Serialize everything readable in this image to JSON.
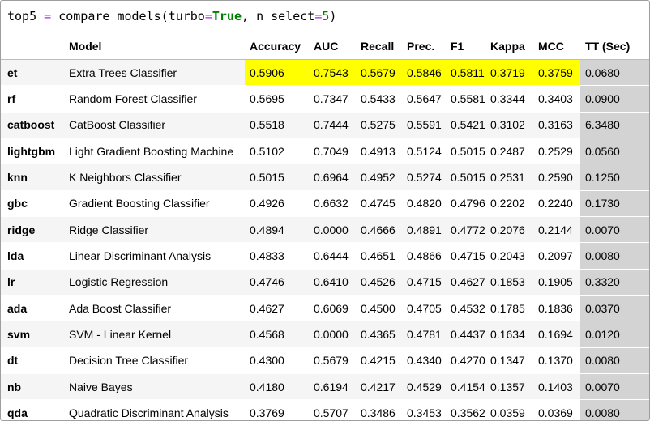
{
  "code": {
    "func_call": "top5",
    "op_assign": "=",
    "func_name": "compare_models(",
    "arg1_name": "turbo",
    "op_eq1": "=",
    "arg1_value": "True",
    "sep": ", ",
    "arg2_name": "n_select",
    "op_eq2": "=",
    "arg2_value": "5",
    "close": ")"
  },
  "colors": {
    "highlight": "#ffff00",
    "tt_column": "#d3d3d3",
    "keyword_green": "#008000",
    "operator_purple": "#aa22ff"
  },
  "table": {
    "index_header": "",
    "columns": [
      "Model",
      "Accuracy",
      "AUC",
      "Recall",
      "Prec.",
      "F1",
      "Kappa",
      "MCC",
      "TT (Sec)"
    ],
    "highlighted_row": "et",
    "rows": [
      {
        "id": "et",
        "model": "Extra Trees Classifier",
        "values": [
          "0.5906",
          "0.7543",
          "0.5679",
          "0.5846",
          "0.5811",
          "0.3719",
          "0.3759",
          "0.0680"
        ]
      },
      {
        "id": "rf",
        "model": "Random Forest Classifier",
        "values": [
          "0.5695",
          "0.7347",
          "0.5433",
          "0.5647",
          "0.5581",
          "0.3344",
          "0.3403",
          "0.0900"
        ]
      },
      {
        "id": "catboost",
        "model": "CatBoost Classifier",
        "values": [
          "0.5518",
          "0.7444",
          "0.5275",
          "0.5591",
          "0.5421",
          "0.3102",
          "0.3163",
          "6.3480"
        ]
      },
      {
        "id": "lightgbm",
        "model": "Light Gradient Boosting Machine",
        "values": [
          "0.5102",
          "0.7049",
          "0.4913",
          "0.5124",
          "0.5015",
          "0.2487",
          "0.2529",
          "0.0560"
        ]
      },
      {
        "id": "knn",
        "model": "K Neighbors Classifier",
        "values": [
          "0.5015",
          "0.6964",
          "0.4952",
          "0.5274",
          "0.5015",
          "0.2531",
          "0.2590",
          "0.1250"
        ]
      },
      {
        "id": "gbc",
        "model": "Gradient Boosting Classifier",
        "values": [
          "0.4926",
          "0.6632",
          "0.4745",
          "0.4820",
          "0.4796",
          "0.2202",
          "0.2240",
          "0.1730"
        ]
      },
      {
        "id": "ridge",
        "model": "Ridge Classifier",
        "values": [
          "0.4894",
          "0.0000",
          "0.4666",
          "0.4891",
          "0.4772",
          "0.2076",
          "0.2144",
          "0.0070"
        ]
      },
      {
        "id": "lda",
        "model": "Linear Discriminant Analysis",
        "values": [
          "0.4833",
          "0.6444",
          "0.4651",
          "0.4866",
          "0.4715",
          "0.2043",
          "0.2097",
          "0.0080"
        ]
      },
      {
        "id": "lr",
        "model": "Logistic Regression",
        "values": [
          "0.4746",
          "0.6410",
          "0.4526",
          "0.4715",
          "0.4627",
          "0.1853",
          "0.1905",
          "0.3320"
        ]
      },
      {
        "id": "ada",
        "model": "Ada Boost Classifier",
        "values": [
          "0.4627",
          "0.6069",
          "0.4500",
          "0.4705",
          "0.4532",
          "0.1785",
          "0.1836",
          "0.0370"
        ]
      },
      {
        "id": "svm",
        "model": "SVM - Linear Kernel",
        "values": [
          "0.4568",
          "0.0000",
          "0.4365",
          "0.4781",
          "0.4437",
          "0.1634",
          "0.1694",
          "0.0120"
        ]
      },
      {
        "id": "dt",
        "model": "Decision Tree Classifier",
        "values": [
          "0.4300",
          "0.5679",
          "0.4215",
          "0.4340",
          "0.4270",
          "0.1347",
          "0.1370",
          "0.0080"
        ]
      },
      {
        "id": "nb",
        "model": "Naive Bayes",
        "values": [
          "0.4180",
          "0.6194",
          "0.4217",
          "0.4529",
          "0.4154",
          "0.1357",
          "0.1403",
          "0.0070"
        ]
      },
      {
        "id": "qda",
        "model": "Quadratic Discriminant Analysis",
        "values": [
          "0.3769",
          "0.5707",
          "0.3486",
          "0.3453",
          "0.3562",
          "0.0359",
          "0.0369",
          "0.0080"
        ]
      }
    ]
  }
}
